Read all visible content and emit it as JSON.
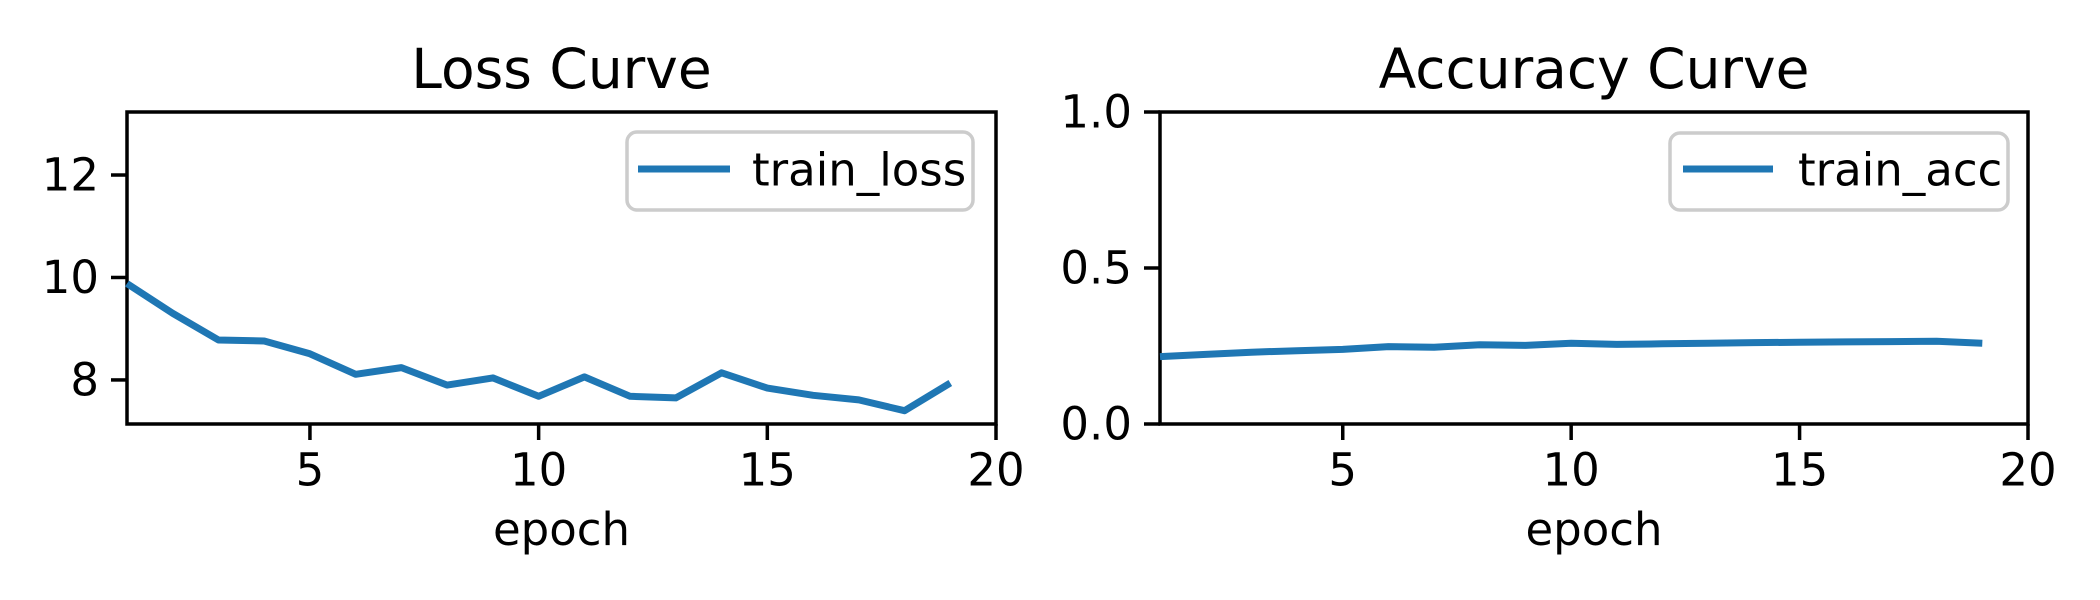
{
  "figure": {
    "background": "#ffffff",
    "text_color": "#000000",
    "spine_color": "#000000",
    "legend_border_color": "#cccccc"
  },
  "chart_data": [
    {
      "type": "line",
      "title": "Loss Curve",
      "xlabel": "epoch",
      "ylabel": "",
      "legend": {
        "position": "upper right",
        "label": "train_loss"
      },
      "line_color": "#1f77b4",
      "x": [
        1,
        2,
        3,
        4,
        5,
        6,
        7,
        8,
        9,
        10,
        11,
        12,
        13,
        14,
        15,
        16,
        17,
        18,
        19
      ],
      "y": [
        9.88,
        9.3,
        8.78,
        8.76,
        8.51,
        8.11,
        8.24,
        7.9,
        8.04,
        7.68,
        8.06,
        7.68,
        7.65,
        8.14,
        7.84,
        7.7,
        7.61,
        7.4,
        7.94
      ],
      "xlim": [
        1,
        20
      ],
      "ylim": [
        7.14,
        13.23
      ],
      "xticks": [
        5,
        10,
        15,
        20
      ],
      "xtick_labels": [
        "5",
        "10",
        "15",
        "20"
      ],
      "yticks": [
        8,
        10,
        12
      ],
      "ytick_labels": [
        "8",
        "10",
        "12"
      ],
      "grid": false
    },
    {
      "type": "line",
      "title": "Accuracy Curve",
      "xlabel": "epoch",
      "ylabel": "",
      "legend": {
        "position": "upper right",
        "label": "train_acc"
      },
      "line_color": "#1f77b4",
      "x": [
        1,
        2,
        3,
        4,
        5,
        6,
        7,
        8,
        9,
        10,
        11,
        12,
        13,
        14,
        15,
        16,
        17,
        18,
        19
      ],
      "y": [
        0.216,
        0.223,
        0.23,
        0.235,
        0.239,
        0.248,
        0.246,
        0.254,
        0.252,
        0.259,
        0.255,
        0.257,
        0.259,
        0.261,
        0.262,
        0.263,
        0.264,
        0.265,
        0.259
      ],
      "xlim": [
        1,
        20
      ],
      "ylim": [
        0,
        1
      ],
      "xticks": [
        5,
        10,
        15,
        20
      ],
      "xtick_labels": [
        "5",
        "10",
        "15",
        "20"
      ],
      "yticks": [
        0,
        0.5,
        1
      ],
      "ytick_labels": [
        "0.0",
        "0.5",
        "1.0"
      ],
      "grid": false
    }
  ]
}
